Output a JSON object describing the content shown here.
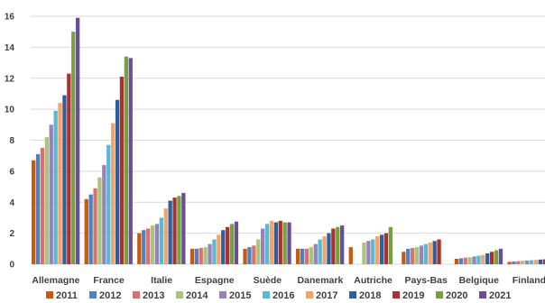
{
  "chart_data": {
    "type": "bar",
    "title": "",
    "xlabel": "",
    "ylabel": "",
    "ylim": [
      0,
      16
    ],
    "yticks": [
      0,
      2,
      4,
      6,
      8,
      10,
      12,
      14,
      16
    ],
    "grid": true,
    "legend_position": "bottom",
    "categories": [
      "Allemagne",
      "France",
      "Italie",
      "Espagne",
      "Suède",
      "Danemark",
      "Autriche",
      "Pays-Bas",
      "Belgique",
      "Finlande"
    ],
    "series": [
      {
        "name": "2011",
        "color": "#c55a11",
        "values": [
          6.7,
          4.2,
          2.0,
          1.0,
          1.0,
          1.0,
          1.1,
          0.8,
          0.35,
          0.15
        ]
      },
      {
        "name": "2012",
        "color": "#4f81bd",
        "values": [
          7.1,
          4.5,
          2.2,
          1.0,
          1.1,
          1.0,
          null,
          1.0,
          0.38,
          0.18
        ]
      },
      {
        "name": "2013",
        "color": "#d9726f",
        "values": [
          7.5,
          4.9,
          2.3,
          1.05,
          1.2,
          1.0,
          null,
          1.05,
          0.42,
          0.2
        ]
      },
      {
        "name": "2014",
        "color": "#a9c47f",
        "values": [
          8.2,
          5.6,
          2.5,
          1.1,
          1.6,
          1.1,
          1.4,
          1.1,
          0.45,
          0.22
        ]
      },
      {
        "name": "2015",
        "color": "#9783b8",
        "values": [
          9.0,
          6.4,
          2.6,
          1.3,
          2.3,
          1.3,
          1.5,
          1.2,
          0.5,
          0.24
        ]
      },
      {
        "name": "2016",
        "color": "#5bb8d4",
        "values": [
          9.9,
          7.7,
          3.0,
          1.6,
          2.6,
          1.6,
          1.6,
          1.3,
          0.55,
          0.26
        ]
      },
      {
        "name": "2017",
        "color": "#f4a36a",
        "values": [
          10.4,
          9.1,
          3.6,
          1.9,
          2.8,
          1.8,
          1.8,
          1.4,
          0.6,
          0.28
        ]
      },
      {
        "name": "2018",
        "color": "#2e5f9e",
        "values": [
          10.9,
          10.6,
          4.1,
          2.2,
          2.7,
          2.0,
          1.9,
          1.5,
          0.7,
          0.3
        ]
      },
      {
        "name": "2019",
        "color": "#a8322d",
        "values": [
          12.3,
          12.1,
          4.3,
          2.4,
          2.8,
          2.3,
          2.0,
          1.6,
          0.8,
          0.32
        ]
      },
      {
        "name": "2020",
        "color": "#77a043",
        "values": [
          15.0,
          13.4,
          4.4,
          2.6,
          2.7,
          2.4,
          2.4,
          null,
          0.9,
          0.36
        ]
      },
      {
        "name": "2021",
        "color": "#6a4f96",
        "values": [
          15.9,
          13.3,
          4.6,
          2.75,
          2.7,
          2.5,
          null,
          null,
          1.0,
          0.4
        ]
      }
    ]
  }
}
